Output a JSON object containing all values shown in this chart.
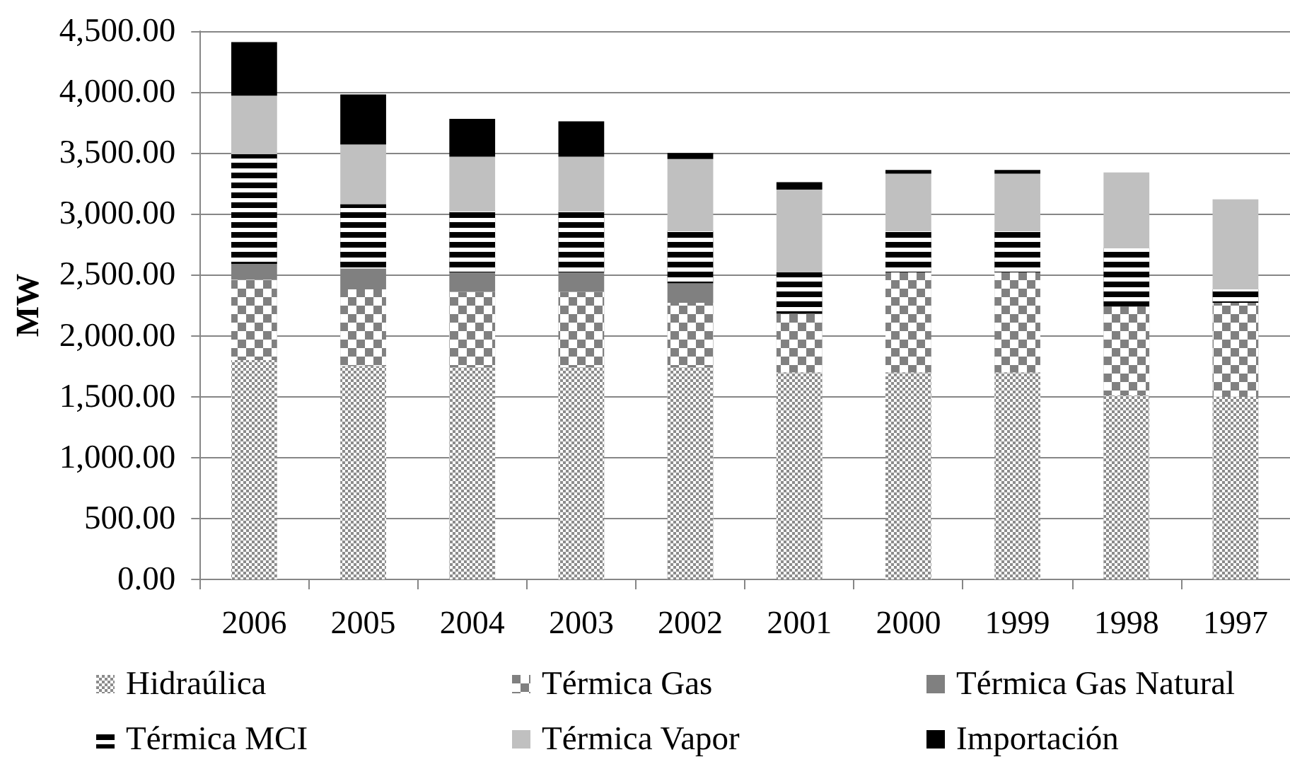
{
  "chart_data": {
    "type": "bar",
    "stacked": true,
    "ylabel": "MW",
    "categories": [
      "2006",
      "2005",
      "2004",
      "2003",
      "2002",
      "2001",
      "2000",
      "1999",
      "1998",
      "1997"
    ],
    "series": [
      {
        "name": "Hidraúlica",
        "color": "#8c8c8c",
        "values": [
          1800,
          1750,
          1740,
          1740,
          1740,
          1700,
          1700,
          1700,
          1510,
          1500
        ]
      },
      {
        "name": "Térmica Gas",
        "color": "#808080",
        "values": [
          660,
          630,
          620,
          620,
          530,
          480,
          820,
          820,
          730,
          770
        ]
      },
      {
        "name": "Térmica Gas Natural",
        "color": "#808080",
        "values": [
          130,
          170,
          160,
          160,
          160,
          0,
          0,
          0,
          0,
          0
        ]
      },
      {
        "name": "Térmica MCI",
        "color": "#000000",
        "values": [
          900,
          530,
          500,
          500,
          430,
          340,
          340,
          340,
          480,
          110
        ]
      },
      {
        "name": "Térmica Vapor",
        "color": "#c0c0c0",
        "values": [
          480,
          490,
          450,
          450,
          590,
          680,
          470,
          470,
          620,
          740
        ]
      },
      {
        "name": "Importación",
        "color": "#000000",
        "values": [
          440,
          410,
          310,
          290,
          50,
          60,
          30,
          30,
          0,
          0
        ]
      }
    ],
    "ylim": [
      0,
      4500
    ],
    "yticks": [
      {
        "value": 0,
        "label": "0.00"
      },
      {
        "value": 500,
        "label": "500.00"
      },
      {
        "value": 1000,
        "label": "1,000.00"
      },
      {
        "value": 1500,
        "label": "1,500.00"
      },
      {
        "value": 2000,
        "label": "2,000.00"
      },
      {
        "value": 2500,
        "label": "2,500.00"
      },
      {
        "value": 3000,
        "label": "3,000.00"
      },
      {
        "value": 3500,
        "label": "3,500.00"
      },
      {
        "value": 4000,
        "label": "4,000.00"
      },
      {
        "value": 4500,
        "label": "4,500.00"
      }
    ],
    "grid": "y",
    "legend": "bottom"
  }
}
